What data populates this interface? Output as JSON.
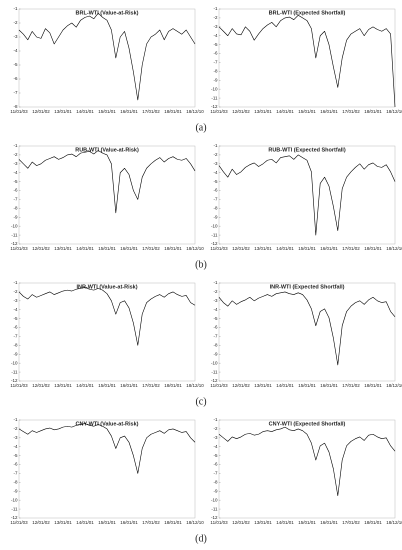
{
  "chart_data": [
    {
      "type": "line",
      "title": "BRL-WTI (Value-at-Risk)",
      "color": "#000000",
      "categories": [
        "11/01/03",
        null,
        null,
        null,
        null,
        "12/01/02",
        null,
        null,
        null,
        null,
        "13/01/01",
        null,
        null,
        null,
        null,
        "14/01/01",
        null,
        null,
        null,
        null,
        "15/01/01",
        null,
        null,
        null,
        null,
        "16/01/01",
        null,
        null,
        null,
        null,
        "17/01/02",
        null,
        null,
        null,
        null,
        "18/01/01",
        null,
        null,
        null,
        null,
        "18/12/10"
      ],
      "values": [
        -2.5,
        -2.8,
        -3.2,
        -2.6,
        -3.0,
        -3.1,
        -2.4,
        -2.7,
        -3.5,
        -3.0,
        -2.5,
        -2.2,
        -2.0,
        -2.3,
        -1.8,
        -1.6,
        -1.5,
        -1.7,
        -1.3,
        -1.6,
        -1.8,
        -2.5,
        -4.5,
        -3.0,
        -2.6,
        -3.8,
        -5.5,
        -7.5,
        -5.0,
        -3.5,
        -3.0,
        -2.8,
        -2.5,
        -3.2,
        -2.6,
        -2.4,
        -2.6,
        -2.8,
        -2.5,
        -3.0,
        -3.5
      ],
      "ylim": [
        -8,
        -1
      ],
      "yticks": [
        -1,
        -2,
        -3,
        -4,
        -5,
        -6,
        -7,
        -8
      ]
    },
    {
      "type": "line",
      "title": "BRL-WTI (Expected Shortfall)",
      "color": "#000000",
      "categories": [
        "11/01/03",
        null,
        null,
        null,
        null,
        "12/01/02",
        null,
        null,
        null,
        null,
        "13/01/01",
        null,
        null,
        null,
        null,
        "14/01/01",
        null,
        null,
        null,
        null,
        "15/01/01",
        null,
        null,
        null,
        null,
        "16/01/01",
        null,
        null,
        null,
        null,
        "17/01/02",
        null,
        null,
        null,
        null,
        "18/01/01",
        null,
        null,
        null,
        null,
        "18/12/10"
      ],
      "values": [
        -3.0,
        -3.5,
        -4.0,
        -3.2,
        -3.8,
        -3.9,
        -3.0,
        -3.5,
        -4.5,
        -3.8,
        -3.2,
        -2.8,
        -2.5,
        -3.0,
        -2.3,
        -2.0,
        -1.9,
        -2.2,
        -1.7,
        -2.0,
        -2.3,
        -3.2,
        -6.5,
        -4.0,
        -3.5,
        -5.0,
        -7.5,
        -9.8,
        -6.5,
        -4.5,
        -3.8,
        -3.5,
        -3.2,
        -4.0,
        -3.3,
        -3.0,
        -3.3,
        -3.5,
        -3.2,
        -3.8,
        -12.0
      ],
      "ylim": [
        -12,
        -1
      ],
      "yticks": [
        -1,
        -2,
        -3,
        -4,
        -5,
        -6,
        -7,
        -8,
        -9,
        -10,
        -11,
        -12
      ]
    },
    {
      "type": "line",
      "title": "RUB-WTI (Value-at-Risk)",
      "color": "#000000",
      "categories": [
        "11/01/03",
        null,
        null,
        null,
        null,
        "12/01/02",
        null,
        null,
        null,
        null,
        "13/01/01",
        null,
        null,
        null,
        null,
        "14/01/01",
        null,
        null,
        null,
        null,
        "15/01/01",
        null,
        null,
        null,
        null,
        "16/01/01",
        null,
        null,
        null,
        null,
        "17/01/02",
        null,
        null,
        null,
        null,
        "18/01/01",
        null,
        null,
        null,
        null,
        "18/12/10"
      ],
      "values": [
        -2.5,
        -3.0,
        -3.5,
        -2.8,
        -3.2,
        -3.0,
        -2.6,
        -2.4,
        -2.2,
        -2.5,
        -2.3,
        -2.0,
        -1.9,
        -2.2,
        -1.8,
        -1.7,
        -1.6,
        -1.9,
        -1.5,
        -1.8,
        -2.0,
        -3.0,
        -8.5,
        -4.0,
        -3.5,
        -4.2,
        -6.0,
        -7.0,
        -4.5,
        -3.5,
        -3.0,
        -2.6,
        -2.3,
        -2.8,
        -2.4,
        -2.2,
        -2.5,
        -2.6,
        -2.4,
        -3.0,
        -3.8
      ],
      "ylim": [
        -12,
        -1
      ],
      "yticks": [
        -1,
        -2,
        -3,
        -4,
        -5,
        -6,
        -7,
        -8,
        -9,
        -10,
        -11,
        -12
      ]
    },
    {
      "type": "line",
      "title": "RUB-WTI (Expected Shortfall)",
      "color": "#000000",
      "categories": [
        "11/01/03",
        null,
        null,
        null,
        null,
        "12/01/02",
        null,
        null,
        null,
        null,
        "13/01/01",
        null,
        null,
        null,
        null,
        "14/01/01",
        null,
        null,
        null,
        null,
        "15/01/01",
        null,
        null,
        null,
        null,
        "16/01/01",
        null,
        null,
        null,
        null,
        "17/01/02",
        null,
        null,
        null,
        null,
        "18/01/01",
        null,
        null,
        null,
        null,
        "18/12/10"
      ],
      "values": [
        -3.2,
        -3.9,
        -4.5,
        -3.6,
        -4.2,
        -3.9,
        -3.4,
        -3.1,
        -2.9,
        -3.3,
        -3.0,
        -2.6,
        -2.5,
        -2.9,
        -2.3,
        -2.2,
        -2.1,
        -2.5,
        -2.0,
        -2.3,
        -2.6,
        -3.9,
        -11.0,
        -5.2,
        -4.5,
        -5.5,
        -7.8,
        -10.5,
        -5.8,
        -4.5,
        -3.9,
        -3.4,
        -3.0,
        -3.6,
        -3.1,
        -2.9,
        -3.3,
        -3.4,
        -3.1,
        -3.9,
        -5.0
      ],
      "ylim": [
        -12,
        -1
      ],
      "yticks": [
        -1,
        -2,
        -3,
        -4,
        -5,
        -6,
        -7,
        -8,
        -9,
        -10,
        -11,
        -12
      ]
    },
    {
      "type": "line",
      "title": "INR-WTI (Value-at-Risk)",
      "color": "#000000",
      "categories": [
        "11/01/03",
        null,
        null,
        null,
        null,
        "12/01/02",
        null,
        null,
        null,
        null,
        "13/01/01",
        null,
        null,
        null,
        null,
        "14/01/01",
        null,
        null,
        null,
        null,
        "15/01/01",
        null,
        null,
        null,
        null,
        "16/01/01",
        null,
        null,
        null,
        null,
        "17/01/02",
        null,
        null,
        null,
        null,
        "18/01/01",
        null,
        null,
        null,
        null,
        "18/12/10"
      ],
      "values": [
        -2.0,
        -2.5,
        -2.8,
        -2.3,
        -2.6,
        -2.4,
        -2.2,
        -2.0,
        -2.3,
        -2.1,
        -1.9,
        -1.8,
        -1.9,
        -1.7,
        -1.6,
        -1.5,
        -1.7,
        -1.8,
        -1.6,
        -1.8,
        -2.2,
        -3.0,
        -4.5,
        -3.2,
        -3.0,
        -3.8,
        -5.5,
        -8.0,
        -4.5,
        -3.2,
        -2.8,
        -2.5,
        -2.3,
        -2.6,
        -2.2,
        -2.0,
        -2.3,
        -2.5,
        -2.4,
        -3.2,
        -3.5
      ],
      "ylim": [
        -12,
        -1
      ],
      "yticks": [
        -1,
        -2,
        -3,
        -4,
        -5,
        -6,
        -7,
        -8,
        -9,
        -10,
        -11,
        -12
      ]
    },
    {
      "type": "line",
      "title": "INR-WTI (Expected Shortfall)",
      "color": "#000000",
      "categories": [
        "11/01/03",
        null,
        null,
        null,
        null,
        "12/01/02",
        null,
        null,
        null,
        null,
        "13/01/01",
        null,
        null,
        null,
        null,
        "14/01/01",
        null,
        null,
        null,
        null,
        "15/01/01",
        null,
        null,
        null,
        null,
        "16/01/01",
        null,
        null,
        null,
        null,
        "17/01/02",
        null,
        null,
        null,
        null,
        "18/01/01",
        null,
        null,
        null,
        null,
        "18/12/10"
      ],
      "values": [
        -2.6,
        -3.2,
        -3.6,
        -3.0,
        -3.4,
        -3.1,
        -2.9,
        -2.6,
        -3.0,
        -2.7,
        -2.5,
        -2.3,
        -2.5,
        -2.2,
        -2.1,
        -2.0,
        -2.2,
        -2.3,
        -2.1,
        -2.3,
        -2.9,
        -3.9,
        -5.8,
        -4.2,
        -3.9,
        -4.9,
        -7.2,
        -10.2,
        -5.8,
        -4.2,
        -3.6,
        -3.2,
        -3.0,
        -3.4,
        -2.9,
        -2.6,
        -3.0,
        -3.2,
        -3.1,
        -4.2,
        -4.8
      ],
      "ylim": [
        -12,
        -1
      ],
      "yticks": [
        -1,
        -2,
        -3,
        -4,
        -5,
        -6,
        -7,
        -8,
        -9,
        -10,
        -11,
        -12
      ]
    },
    {
      "type": "line",
      "title": "CNY-WTI (Value-at-Risk)",
      "color": "#000000",
      "categories": [
        "11/01/03",
        null,
        null,
        null,
        null,
        "12/01/02",
        null,
        null,
        null,
        null,
        "13/01/01",
        null,
        null,
        null,
        null,
        "14/01/01",
        null,
        null,
        null,
        null,
        "15/01/01",
        null,
        null,
        null,
        null,
        "16/01/01",
        null,
        null,
        null,
        null,
        "17/01/02",
        null,
        null,
        null,
        null,
        "18/01/01",
        null,
        null,
        null,
        null,
        "18/12/10"
      ],
      "values": [
        -2.0,
        -2.3,
        -2.6,
        -2.2,
        -2.4,
        -2.2,
        -2.0,
        -1.9,
        -2.1,
        -2.0,
        -1.8,
        -1.7,
        -1.8,
        -1.6,
        -1.5,
        -1.4,
        -1.6,
        -1.7,
        -1.5,
        -1.7,
        -2.0,
        -2.8,
        -4.2,
        -3.0,
        -2.8,
        -3.5,
        -5.0,
        -7.0,
        -4.2,
        -3.0,
        -2.6,
        -2.4,
        -2.2,
        -2.5,
        -2.1,
        -2.0,
        -2.2,
        -2.4,
        -2.3,
        -3.0,
        -3.5
      ],
      "ylim": [
        -12,
        -1
      ],
      "yticks": [
        -1,
        -2,
        -3,
        -4,
        -5,
        -6,
        -7,
        -8,
        -9,
        -10,
        -11,
        -12
      ]
    },
    {
      "type": "line",
      "title": "CNY-WTI (Expected Shortfall)",
      "color": "#000000",
      "categories": [
        "11/01/03",
        null,
        null,
        null,
        null,
        "12/01/02",
        null,
        null,
        null,
        null,
        "13/01/01",
        null,
        null,
        null,
        null,
        "14/01/01",
        null,
        null,
        null,
        null,
        "15/01/01",
        null,
        null,
        null,
        null,
        "16/01/01",
        null,
        null,
        null,
        null,
        "17/01/02",
        null,
        null,
        null,
        null,
        "18/01/01",
        null,
        null,
        null,
        null,
        "18/12/10"
      ],
      "values": [
        -2.6,
        -3.0,
        -3.4,
        -2.9,
        -3.1,
        -2.9,
        -2.6,
        -2.5,
        -2.7,
        -2.6,
        -2.3,
        -2.2,
        -2.3,
        -2.1,
        -2.0,
        -1.8,
        -2.1,
        -2.2,
        -2.0,
        -2.2,
        -2.6,
        -3.6,
        -5.5,
        -3.9,
        -3.6,
        -4.6,
        -6.5,
        -9.5,
        -5.5,
        -3.9,
        -3.4,
        -3.1,
        -2.9,
        -3.3,
        -2.7,
        -2.6,
        -2.9,
        -3.1,
        -3.0,
        -3.9,
        -4.5
      ],
      "ylim": [
        -12,
        -1
      ],
      "yticks": [
        -1,
        -2,
        -3,
        -4,
        -5,
        -6,
        -7,
        -8,
        -9,
        -10,
        -11,
        -12
      ]
    }
  ],
  "panel_labels": [
    "(a)",
    "(b)",
    "(c)",
    "(d)"
  ]
}
